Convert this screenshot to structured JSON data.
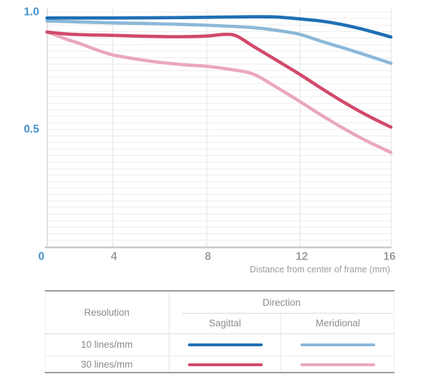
{
  "chart_data": {
    "type": "line",
    "title": "",
    "xlabel": "Distance from center of frame (mm)",
    "ylabel": "",
    "xlim": [
      0,
      16
    ],
    "ylim": [
      0,
      1.0
    ],
    "x_ticks": [
      0,
      4,
      8,
      12,
      16
    ],
    "y_ticks": [
      0.5,
      1.0
    ],
    "grid": "fine horizontal lines + vertical lines at x ticks",
    "legend_position": "table below chart",
    "series": [
      {
        "name": "10 lines/mm Sagittal",
        "color": "#1f6fb5",
        "points": [
          [
            0,
            0.975
          ],
          [
            2,
            0.975
          ],
          [
            4,
            0.975
          ],
          [
            6,
            0.976
          ],
          [
            8,
            0.978
          ],
          [
            10,
            0.98
          ],
          [
            11,
            0.979
          ],
          [
            12,
            0.971
          ],
          [
            13,
            0.961
          ],
          [
            14,
            0.944
          ],
          [
            15,
            0.921
          ],
          [
            16,
            0.894
          ]
        ]
      },
      {
        "name": "10 lines/mm Meridional",
        "color": "#8cb8d8",
        "points": [
          [
            0,
            0.962
          ],
          [
            2,
            0.958
          ],
          [
            4,
            0.954
          ],
          [
            6,
            0.95
          ],
          [
            8,
            0.944
          ],
          [
            10,
            0.934
          ],
          [
            11,
            0.922
          ],
          [
            12,
            0.905
          ],
          [
            13,
            0.874
          ],
          [
            14,
            0.845
          ],
          [
            15,
            0.814
          ],
          [
            16,
            0.782
          ]
        ]
      },
      {
        "name": "30 lines/mm Sagittal",
        "color": "#d14a6a",
        "points": [
          [
            0,
            0.915
          ],
          [
            1,
            0.908
          ],
          [
            2,
            0.904
          ],
          [
            3,
            0.902
          ],
          [
            4,
            0.901
          ],
          [
            5,
            0.898
          ],
          [
            6,
            0.896
          ],
          [
            7,
            0.895
          ],
          [
            8,
            0.898
          ],
          [
            8.8,
            0.905
          ],
          [
            9.3,
            0.898
          ],
          [
            10,
            0.855
          ],
          [
            11,
            0.795
          ],
          [
            12,
            0.735
          ],
          [
            13,
            0.672
          ],
          [
            14,
            0.612
          ],
          [
            15,
            0.558
          ],
          [
            16,
            0.51
          ]
        ]
      },
      {
        "name": "30 lines/mm Meridional",
        "color": "#eaa8ba",
        "points": [
          [
            0,
            0.915
          ],
          [
            0.6,
            0.9
          ],
          [
            1.2,
            0.884
          ],
          [
            2,
            0.866
          ],
          [
            3,
            0.84
          ],
          [
            4,
            0.818
          ],
          [
            5,
            0.8
          ],
          [
            6,
            0.786
          ],
          [
            7,
            0.776
          ],
          [
            8,
            0.769
          ],
          [
            9,
            0.756
          ],
          [
            10,
            0.736
          ],
          [
            11,
            0.68
          ],
          [
            12,
            0.619
          ],
          [
            13,
            0.558
          ],
          [
            14,
            0.5
          ],
          [
            15,
            0.448
          ],
          [
            16,
            0.402
          ]
        ]
      }
    ]
  },
  "colors": {
    "axis_blue": "#4092cc",
    "tick_gray": "#9c9c9c",
    "grid_fine": "#ededed",
    "grid_vertical": "#e4e4e4",
    "axis_line": "#c9c9c9",
    "yaxis_line": "#d6d6d6"
  },
  "legend_table": {
    "resolution_header": "Resolution",
    "direction_header": "Direction",
    "columns": [
      "Sagittal",
      "Meridional"
    ],
    "rows": [
      {
        "label": "10 lines/mm",
        "sagittal_color": "#1f6fb5",
        "meridional_color": "#8cb8d8"
      },
      {
        "label": "30 lines/mm",
        "sagittal_color": "#d14a6a",
        "meridional_color": "#eaa8ba"
      }
    ]
  }
}
